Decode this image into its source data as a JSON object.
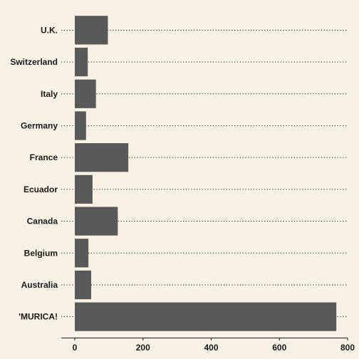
{
  "chart_data": {
    "type": "bar",
    "orientation": "horizontal",
    "categories": [
      "U.K.",
      "Switzerland",
      "Italy",
      "Germany",
      "France",
      "Ecuador",
      "Canada",
      "Belgium",
      "Australia",
      "'MURICA!"
    ],
    "values": [
      97,
      38,
      62,
      33,
      157,
      52,
      126,
      40,
      48,
      767
    ],
    "title": "",
    "xlabel": "",
    "ylabel": "",
    "xlim": [
      0,
      800
    ],
    "x_ticks": [
      0,
      200,
      400,
      600,
      800
    ],
    "grid": "dotted horizontal guide lines per category",
    "legend": "none",
    "colors": {
      "background": "#f8f1e4",
      "bar": "#595959",
      "text": "#1a1a1a",
      "guide": "#222222"
    }
  }
}
